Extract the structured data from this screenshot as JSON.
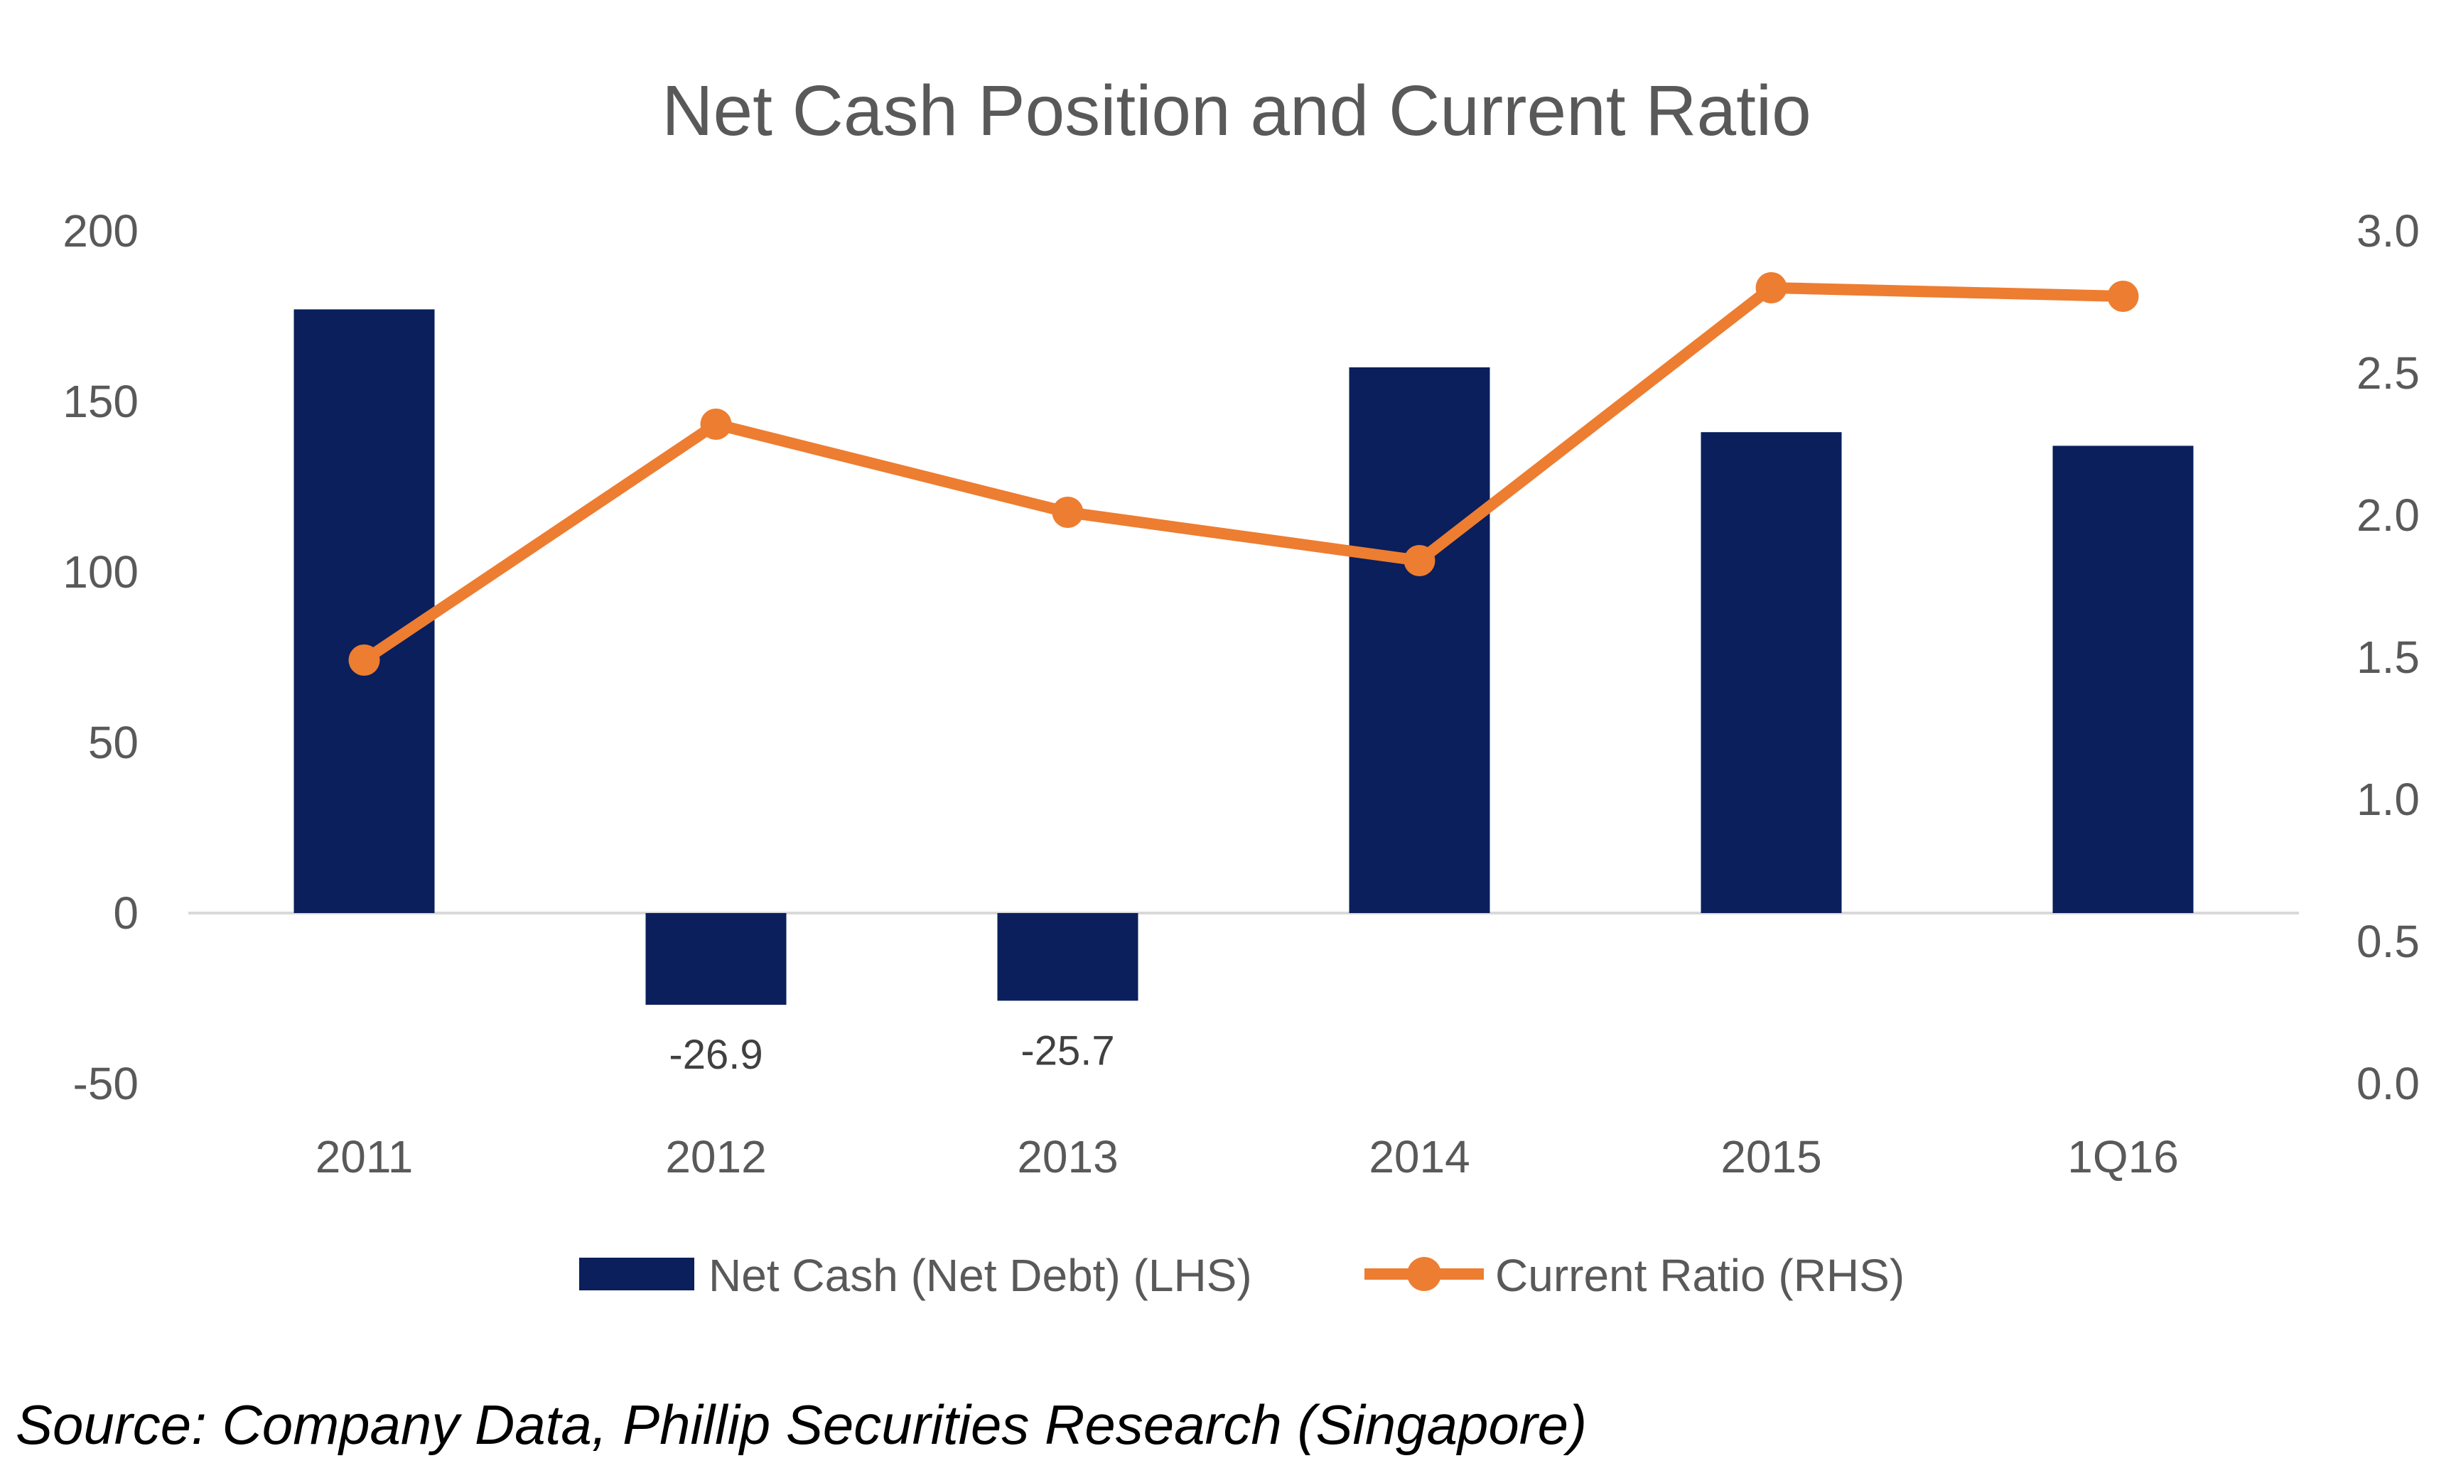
{
  "chart_data": {
    "type": "bar",
    "title": "Net Cash Position and Current Ratio",
    "categories": [
      "2011",
      "2012",
      "2013",
      "2014",
      "2015",
      "1Q16"
    ],
    "series": [
      {
        "name": "Net Cash (Net Debt) (LHS)",
        "type": "bar",
        "axis": "left",
        "color": "#0A1F5C",
        "values": [
          177,
          -26.9,
          -25.7,
          160,
          141,
          137
        ],
        "data_labels": [
          "",
          "-26.9",
          "-25.7",
          "",
          "",
          ""
        ]
      },
      {
        "name": "Current Ratio (RHS)",
        "type": "line",
        "axis": "right",
        "color": "#ED7D31",
        "marker": "circle",
        "values": [
          1.49,
          2.32,
          2.01,
          1.84,
          2.8,
          2.77
        ]
      }
    ],
    "y_left": {
      "ylim": [
        -50,
        200
      ],
      "ticks": [
        200,
        150,
        100,
        50,
        0,
        -50
      ],
      "tick_labels": [
        "200",
        "150",
        "100",
        "50",
        "0",
        "-50"
      ]
    },
    "y_right": {
      "ylim": [
        0,
        3
      ],
      "ticks": [
        3.0,
        2.5,
        2.0,
        1.5,
        1.0,
        0.5,
        0.0
      ],
      "tick_labels": [
        "3.0",
        "2.5",
        "2.0",
        "1.5",
        "1.0",
        "0.5",
        "0.0"
      ]
    },
    "grid": false,
    "legend": "bottom",
    "zero_line_color": "#D9D9D9"
  },
  "source": "Source: Company Data, Phillip Securities Research (Singapore)"
}
